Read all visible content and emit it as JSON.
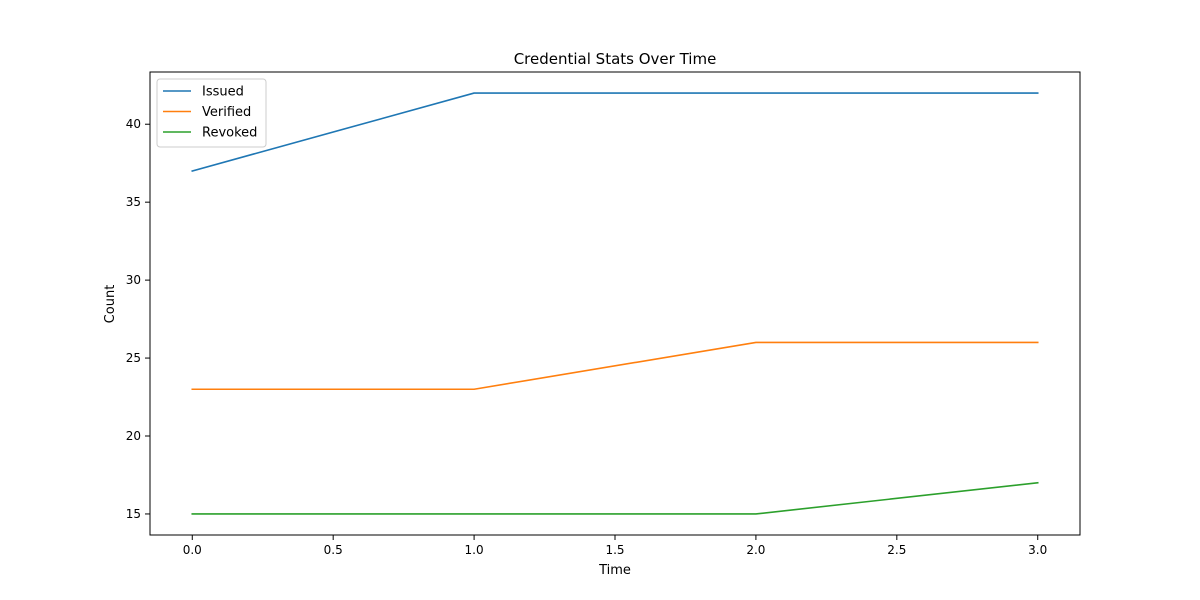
{
  "chart_data": {
    "type": "line",
    "title": "Credential Stats Over Time",
    "xlabel": "Time",
    "ylabel": "Count",
    "x": [
      0,
      1,
      2,
      3
    ],
    "xlim": [
      -0.15,
      3.15
    ],
    "ylim": [
      13.65,
      43.35
    ],
    "xticks": [
      0.0,
      0.5,
      1.0,
      1.5,
      2.0,
      2.5,
      3.0
    ],
    "xtick_labels": [
      "0.0",
      "0.5",
      "1.0",
      "1.5",
      "2.0",
      "2.5",
      "3.0"
    ],
    "yticks": [
      15,
      20,
      25,
      30,
      35,
      40
    ],
    "ytick_labels": [
      "15",
      "20",
      "25",
      "30",
      "35",
      "40"
    ],
    "grid": false,
    "legend_position": "top-left",
    "series": [
      {
        "name": "Issued",
        "color": "#1f77b4",
        "values": [
          37,
          42,
          42,
          42
        ]
      },
      {
        "name": "Verified",
        "color": "#ff7f0e",
        "values": [
          23,
          23,
          26,
          26
        ]
      },
      {
        "name": "Revoked",
        "color": "#2ca02c",
        "values": [
          15,
          15,
          15,
          17
        ]
      }
    ]
  }
}
